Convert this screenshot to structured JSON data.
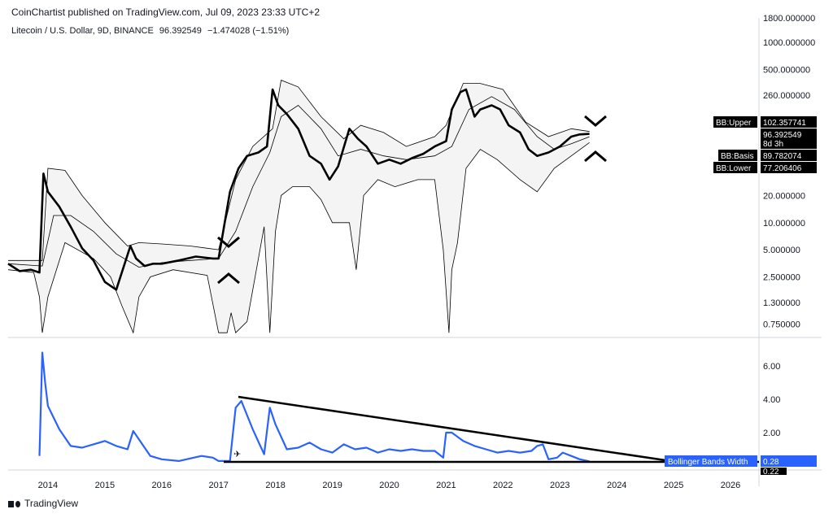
{
  "header": {
    "publisher": "CoinChartist published on TradingView.com, Jul 09, 2023 23:33 UTC+2"
  },
  "legend": {
    "symbol": "Litecoin / U.S. Dollar, 9D, BINANCE",
    "price": "96.392549",
    "change": "−1.474028 (−1.51%)"
  },
  "footer": {
    "brand": "TradingView"
  },
  "price_axis": {
    "ticks": [
      "1000.000000",
      "500.000000",
      "260.000000",
      "20.000000",
      "10.000000",
      "5.000000",
      "2.500000",
      "1.300000",
      "0.750000"
    ],
    "top_partial": "1800.000000"
  },
  "bbw_axis": {
    "ticks": [
      "6.00",
      "4.00",
      "2.00"
    ]
  },
  "time_axis": {
    "ticks": [
      "2014",
      "2015",
      "2016",
      "2017",
      "2018",
      "2019",
      "2020",
      "2021",
      "2022",
      "2023",
      "2024",
      "2025",
      "2026"
    ]
  },
  "tags": {
    "upper_label": "BB:Upper",
    "upper_value": "102.357741",
    "price_value": "96.392549",
    "countdown": "8d 3h",
    "basis_label": "BB:Basis",
    "basis_value": "89.782074",
    "lower_label": "BB:Lower",
    "lower_value": "77.206406",
    "bbw_label": "Bollinger Bands Width",
    "bbw_value": "0.28",
    "bbw_low": "0.22"
  },
  "colors": {
    "price": "#000000",
    "band": "#000000",
    "band_fill": "#f4f4f4",
    "bbw": "#2962ff",
    "tag_dark": "#000000",
    "tag_blue": "#2962ff"
  },
  "chart_data": [
    {
      "type": "line",
      "scale": "log",
      "ylim": [
        0.6,
        1800
      ],
      "xlim": [
        2013.3,
        2026.5
      ],
      "series": [
        {
          "name": "Litecoin / U.S. Dollar",
          "x": [
            2013.3,
            2013.5,
            2013.7,
            2013.85,
            2013.92,
            2014.0,
            2014.2,
            2014.4,
            2014.6,
            2014.8,
            2015.0,
            2015.2,
            2015.45,
            2015.55,
            2015.7,
            2015.85,
            2016.0,
            2016.3,
            2016.6,
            2016.9,
            2017.0,
            2017.2,
            2017.35,
            2017.5,
            2017.7,
            2017.85,
            2017.95,
            2018.05,
            2018.2,
            2018.4,
            2018.6,
            2018.8,
            2018.95,
            2019.1,
            2019.3,
            2019.45,
            2019.6,
            2019.8,
            2020.0,
            2020.2,
            2020.4,
            2020.6,
            2020.8,
            2021.0,
            2021.1,
            2021.25,
            2021.35,
            2021.5,
            2021.6,
            2021.8,
            2021.95,
            2022.1,
            2022.3,
            2022.45,
            2022.6,
            2022.8,
            2023.0,
            2023.2,
            2023.35,
            2023.52
          ],
          "y": [
            3.5,
            2.9,
            3.0,
            2.8,
            35,
            22,
            15,
            9,
            5.2,
            3.8,
            2.2,
            1.8,
            5.5,
            4.0,
            3.3,
            3.5,
            3.5,
            3.8,
            4.2,
            4.0,
            4.0,
            22,
            40,
            55,
            60,
            70,
            300,
            200,
            160,
            110,
            55,
            45,
            30,
            42,
            110,
            85,
            70,
            45,
            50,
            45,
            52,
            58,
            70,
            80,
            180,
            280,
            300,
            150,
            180,
            200,
            180,
            120,
            100,
            65,
            55,
            60,
            70,
            90,
            95,
            96.4
          ]
        },
        {
          "name": "BB:Upper",
          "x": [
            2013.3,
            2013.9,
            2014.0,
            2014.3,
            2014.6,
            2015.0,
            2015.4,
            2015.6,
            2016.0,
            2016.5,
            2017.0,
            2017.3,
            2017.6,
            2017.95,
            2018.1,
            2018.4,
            2018.8,
            2019.2,
            2019.5,
            2019.9,
            2020.3,
            2020.8,
            2021.0,
            2021.3,
            2021.6,
            2022.0,
            2022.4,
            2022.8,
            2023.2,
            2023.52
          ],
          "y": [
            3.8,
            3.8,
            40,
            38,
            20,
            10,
            5.5,
            6,
            5.8,
            5.5,
            5.0,
            30,
            70,
            110,
            380,
            320,
            150,
            85,
            120,
            100,
            70,
            90,
            120,
            350,
            350,
            300,
            130,
            90,
            110,
            102.4
          ]
        },
        {
          "name": "BB:Basis",
          "x": [
            2013.3,
            2013.9,
            2014.1,
            2014.4,
            2014.8,
            2015.2,
            2015.6,
            2016.0,
            2016.5,
            2017.0,
            2017.3,
            2017.6,
            2017.9,
            2018.1,
            2018.4,
            2018.8,
            2019.1,
            2019.5,
            2019.9,
            2020.3,
            2020.8,
            2021.1,
            2021.4,
            2021.8,
            2022.2,
            2022.6,
            2022.9,
            2023.2,
            2023.52
          ],
          "y": [
            3.5,
            3.3,
            12,
            12,
            8,
            4.5,
            3.2,
            3.6,
            3.8,
            4.0,
            8,
            25,
            60,
            150,
            200,
            110,
            55,
            65,
            55,
            50,
            55,
            70,
            180,
            250,
            180,
            90,
            65,
            75,
            89.8
          ]
        },
        {
          "name": "BB:Lower",
          "x": [
            2013.3,
            2013.75,
            2013.85,
            2013.9,
            2014.0,
            2014.3,
            2014.8,
            2015.1,
            2015.3,
            2015.5,
            2015.6,
            2015.8,
            2016.2,
            2016.8,
            2017.0,
            2017.15,
            2017.22,
            2017.3,
            2017.5,
            2017.8,
            2017.9,
            2018.0,
            2018.1,
            2018.3,
            2018.6,
            2018.8,
            2019.0,
            2019.3,
            2019.42,
            2019.55,
            2019.8,
            2020.1,
            2020.5,
            2020.8,
            2020.95,
            2021.05,
            2021.1,
            2021.2,
            2021.35,
            2021.6,
            2021.9,
            2022.3,
            2022.6,
            2022.9,
            2023.2,
            2023.52
          ],
          "y": [
            3.0,
            2.8,
            1.5,
            0.6,
            1.5,
            6,
            4,
            2.5,
            1.2,
            0.6,
            1.5,
            2.5,
            3.0,
            2.6,
            0.6,
            0.6,
            1.0,
            0.6,
            0.8,
            9,
            0.6,
            8,
            20,
            25,
            25,
            18,
            10,
            10,
            3,
            20,
            30,
            25,
            30,
            30,
            5,
            0.6,
            3,
            6,
            40,
            65,
            50,
            30,
            22,
            40,
            55,
            77.2
          ]
        }
      ]
    },
    {
      "type": "line",
      "ylim": [
        0,
        7
      ],
      "xlim": [
        2013.3,
        2026.5
      ],
      "series": [
        {
          "name": "Bollinger Bands Width",
          "x": [
            2013.85,
            2013.9,
            2013.95,
            2014.0,
            2014.2,
            2014.4,
            2014.6,
            2014.8,
            2015.0,
            2015.2,
            2015.4,
            2015.5,
            2015.6,
            2015.8,
            2016.0,
            2016.3,
            2016.7,
            2016.9,
            2017.0,
            2017.2,
            2017.3,
            2017.4,
            2017.6,
            2017.8,
            2017.9,
            2018.0,
            2018.2,
            2018.4,
            2018.6,
            2018.8,
            2019.0,
            2019.2,
            2019.4,
            2019.6,
            2019.8,
            2020.0,
            2020.2,
            2020.4,
            2020.6,
            2020.8,
            2020.95,
            2021.0,
            2021.1,
            2021.3,
            2021.5,
            2021.7,
            2021.9,
            2022.1,
            2022.3,
            2022.5,
            2022.6,
            2022.7,
            2022.8,
            2022.95,
            2023.05,
            2023.2,
            2023.35,
            2023.52
          ],
          "y": [
            0.6,
            6.8,
            5.0,
            3.6,
            2.2,
            1.2,
            1.1,
            1.3,
            1.5,
            1.2,
            1.0,
            2.1,
            1.6,
            0.6,
            0.4,
            0.3,
            0.6,
            0.5,
            0.3,
            0.3,
            3.5,
            3.9,
            2.2,
            0.7,
            3.5,
            2.5,
            1.0,
            1.1,
            1.4,
            1.0,
            0.8,
            1.3,
            1.0,
            1.1,
            0.8,
            1.0,
            0.9,
            1.0,
            0.9,
            0.9,
            0.5,
            2.0,
            2.0,
            1.5,
            1.2,
            1.0,
            0.8,
            0.9,
            0.8,
            0.9,
            1.2,
            1.3,
            0.4,
            0.5,
            0.8,
            0.6,
            0.4,
            0.28
          ]
        }
      ]
    }
  ]
}
